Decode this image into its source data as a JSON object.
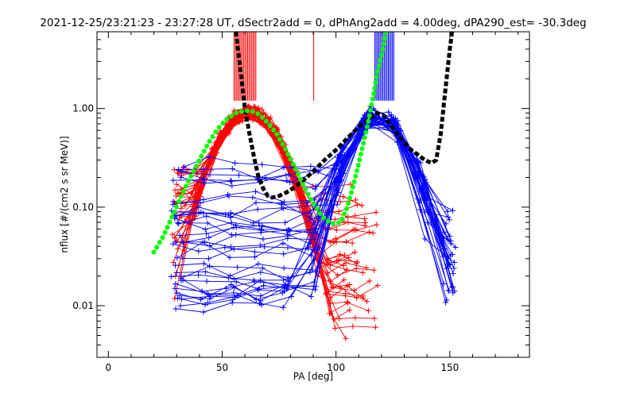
{
  "chart_data": {
    "type": "line",
    "title": "2021-12-25/23:21:23 - 23:27:28 UT, dSectr2add = 0, dPhAng2add = 4.00deg, dPA290_est= -30.3deg",
    "xlabel": "PA [deg]",
    "ylabel": "nflux [#/(cm2 s sr MeV)]",
    "xlim": [
      -5,
      185
    ],
    "ylim": [
      0.003,
      6
    ],
    "yscale": "log",
    "x_ticks": [
      0,
      50,
      100,
      150
    ],
    "x_tick_labels": [
      "0",
      "50",
      "100",
      "150"
    ],
    "y_ticks": [
      0.01,
      0.1,
      1.0
    ],
    "y_tick_labels": [
      "0.01",
      "0.10",
      "1.00"
    ],
    "grid": false,
    "legend": "none",
    "colors": {
      "red": "#ff0000",
      "blue": "#0000ff",
      "black": "#000000",
      "green": "#00ff00"
    },
    "series": [
      {
        "color": "red",
        "style": "lines+plus",
        "count": 36,
        "peak_pa": [
          62,
          62
        ],
        "peak_y": [
          0.95,
          0.95
        ],
        "width": [
          11,
          12
        ],
        "left_pa_range": [
          29,
          33
        ],
        "right_pa_range": [
          104,
          118
        ],
        "right_tail": [
          0.005,
          0.17
        ],
        "left_tail": [
          0.012,
          0.26
        ]
      },
      {
        "color": "blue",
        "style": "lines+plus",
        "count": 36,
        "peak_pa": [
          117,
          120
        ],
        "peak_y": [
          0.85,
          0.95
        ],
        "width": [
          9,
          12
        ],
        "left_pa_range": [
          28,
          33
        ],
        "right_pa_range": [
          147,
          152
        ],
        "left_tail": [
          0.009,
          0.3
        ],
        "right_tail": [
          0.012,
          0.09
        ]
      },
      {
        "color": "black",
        "style": "dashed-thick",
        "x": [
          56,
          58,
          60,
          62,
          64,
          66,
          68,
          70,
          72,
          75,
          78,
          82,
          86,
          90,
          95,
          100,
          105,
          110,
          115,
          118,
          121,
          124,
          127,
          130,
          133,
          136,
          139,
          142,
          144,
          146,
          148,
          150,
          151
        ],
        "y": [
          6,
          2.5,
          1.0,
          0.55,
          0.32,
          0.2,
          0.155,
          0.13,
          0.125,
          0.13,
          0.14,
          0.16,
          0.19,
          0.23,
          0.3,
          0.38,
          0.5,
          0.65,
          0.8,
          0.9,
          0.85,
          0.68,
          0.55,
          0.45,
          0.38,
          0.34,
          0.3,
          0.28,
          0.3,
          0.55,
          1.5,
          4.0,
          6
        ]
      },
      {
        "color": "green",
        "style": "dotted-thick",
        "x": [
          20,
          24,
          28,
          32,
          36,
          40,
          44,
          48,
          52,
          56,
          60,
          63,
          66,
          70,
          74,
          78,
          82,
          86,
          90,
          94,
          98,
          102,
          105,
          108,
          111,
          114,
          116,
          118,
          120,
          122
        ],
        "y": [
          0.035,
          0.05,
          0.08,
          0.13,
          0.2,
          0.3,
          0.45,
          0.62,
          0.78,
          0.9,
          0.95,
          0.94,
          0.88,
          0.72,
          0.55,
          0.38,
          0.25,
          0.16,
          0.11,
          0.08,
          0.068,
          0.07,
          0.1,
          0.18,
          0.35,
          0.7,
          1.2,
          2.2,
          3.5,
          6
        ]
      }
    ],
    "red_sector_marks": {
      "x": [
        55.2,
        55.8,
        56.4,
        57.0,
        57.6,
        58.2,
        58.8,
        59.4,
        60.0,
        60.6,
        61.2,
        61.8,
        62.4,
        63.0,
        63.6,
        64.2,
        64.8,
        90.2
      ],
      "top": 6,
      "bottom": 1.2
    },
    "blue_sector_marks": {
      "x": [
        117.0,
        117.6,
        118.2,
        118.8,
        119.4,
        120.0,
        120.6,
        121.2,
        121.8,
        122.4,
        123.0,
        123.6,
        124.2,
        124.8,
        125.4
      ],
      "top": 6,
      "bottom": 1.2
    }
  }
}
